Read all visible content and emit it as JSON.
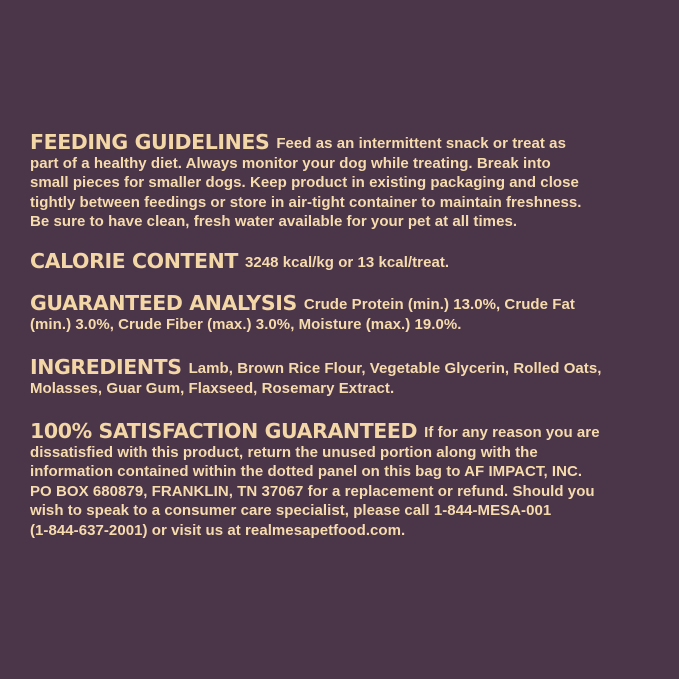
{
  "colors": {
    "background": "#4b3549",
    "text": "#f6dbad"
  },
  "sections": [
    {
      "heading": "FEEDING GUIDELINES",
      "lines": [
        "Feed as an intermittent snack or treat as",
        "part of a healthy diet. Always monitor your dog while treating. Break into",
        "small pieces for smaller dogs. Keep product in existing packaging and close",
        "tightly between feedings or store in air-tight container to maintain freshness.",
        "Be sure to have clean, fresh water available for your pet at all times."
      ]
    },
    {
      "heading": "CALORIE CONTENT",
      "lines": [
        "3248 kcal/kg or 13 kcal/treat."
      ]
    },
    {
      "heading": "GUARANTEED ANALYSIS",
      "lines": [
        "Crude Protein (min.) 13.0%, Crude Fat",
        "(min.) 3.0%, Crude Fiber (max.) 3.0%, Moisture (max.) 19.0%."
      ]
    },
    {
      "heading": "INGREDIENTS",
      "lines": [
        "Lamb, Brown Rice Flour, Vegetable Glycerin, Rolled Oats,",
        "Molasses, Guar Gum, Flaxseed, Rosemary Extract."
      ]
    },
    {
      "heading": "100% SATISFACTION GUARANTEED",
      "lines": [
        "If for any reason you are",
        "dissatisfied with this product, return the unused portion along with the",
        "information contained within the dotted panel on this bag to AF IMPACT, INC.",
        "PO BOX 680879, FRANKLIN, TN 37067 for a replacement or refund.  Should you",
        "wish to speak to a consumer care specialist, please call 1-844-MESA-001",
        "(1-844-637-2001) or visit us at realmesapetfood.com."
      ]
    }
  ]
}
